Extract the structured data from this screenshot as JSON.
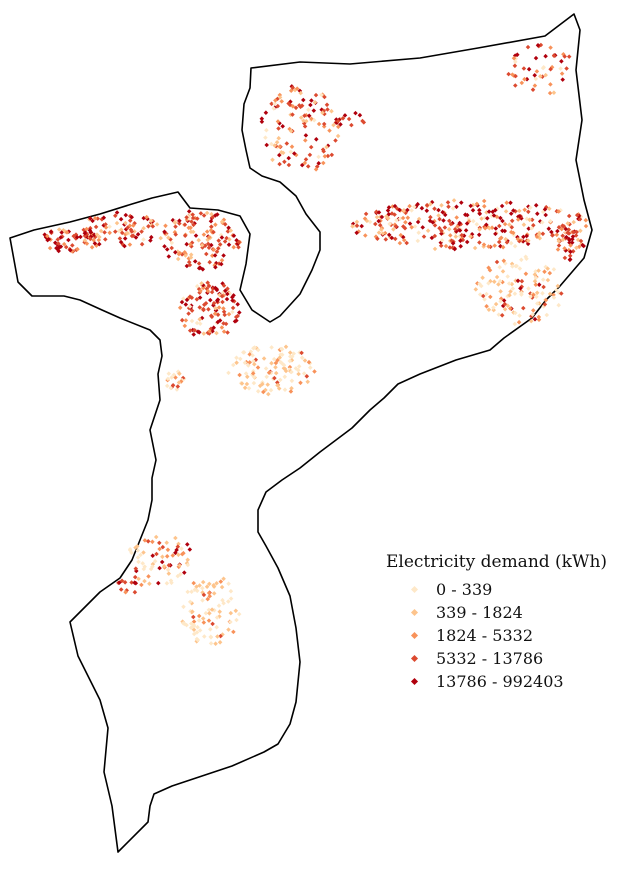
{
  "legend": {
    "title": "Electricity demand (kWh)",
    "classes": [
      {
        "label": "0 - 339",
        "color": "#fee8c8"
      },
      {
        "label": "339 - 1824",
        "color": "#fdc48c"
      },
      {
        "label": "1824 - 5332",
        "color": "#f8925a"
      },
      {
        "label": "5332 - 13786",
        "color": "#dc4a30"
      },
      {
        "label": "13786 - 992403",
        "color": "#b0000d"
      }
    ]
  },
  "colors": {
    "outline": "#000000",
    "background": "#ffffff"
  }
}
